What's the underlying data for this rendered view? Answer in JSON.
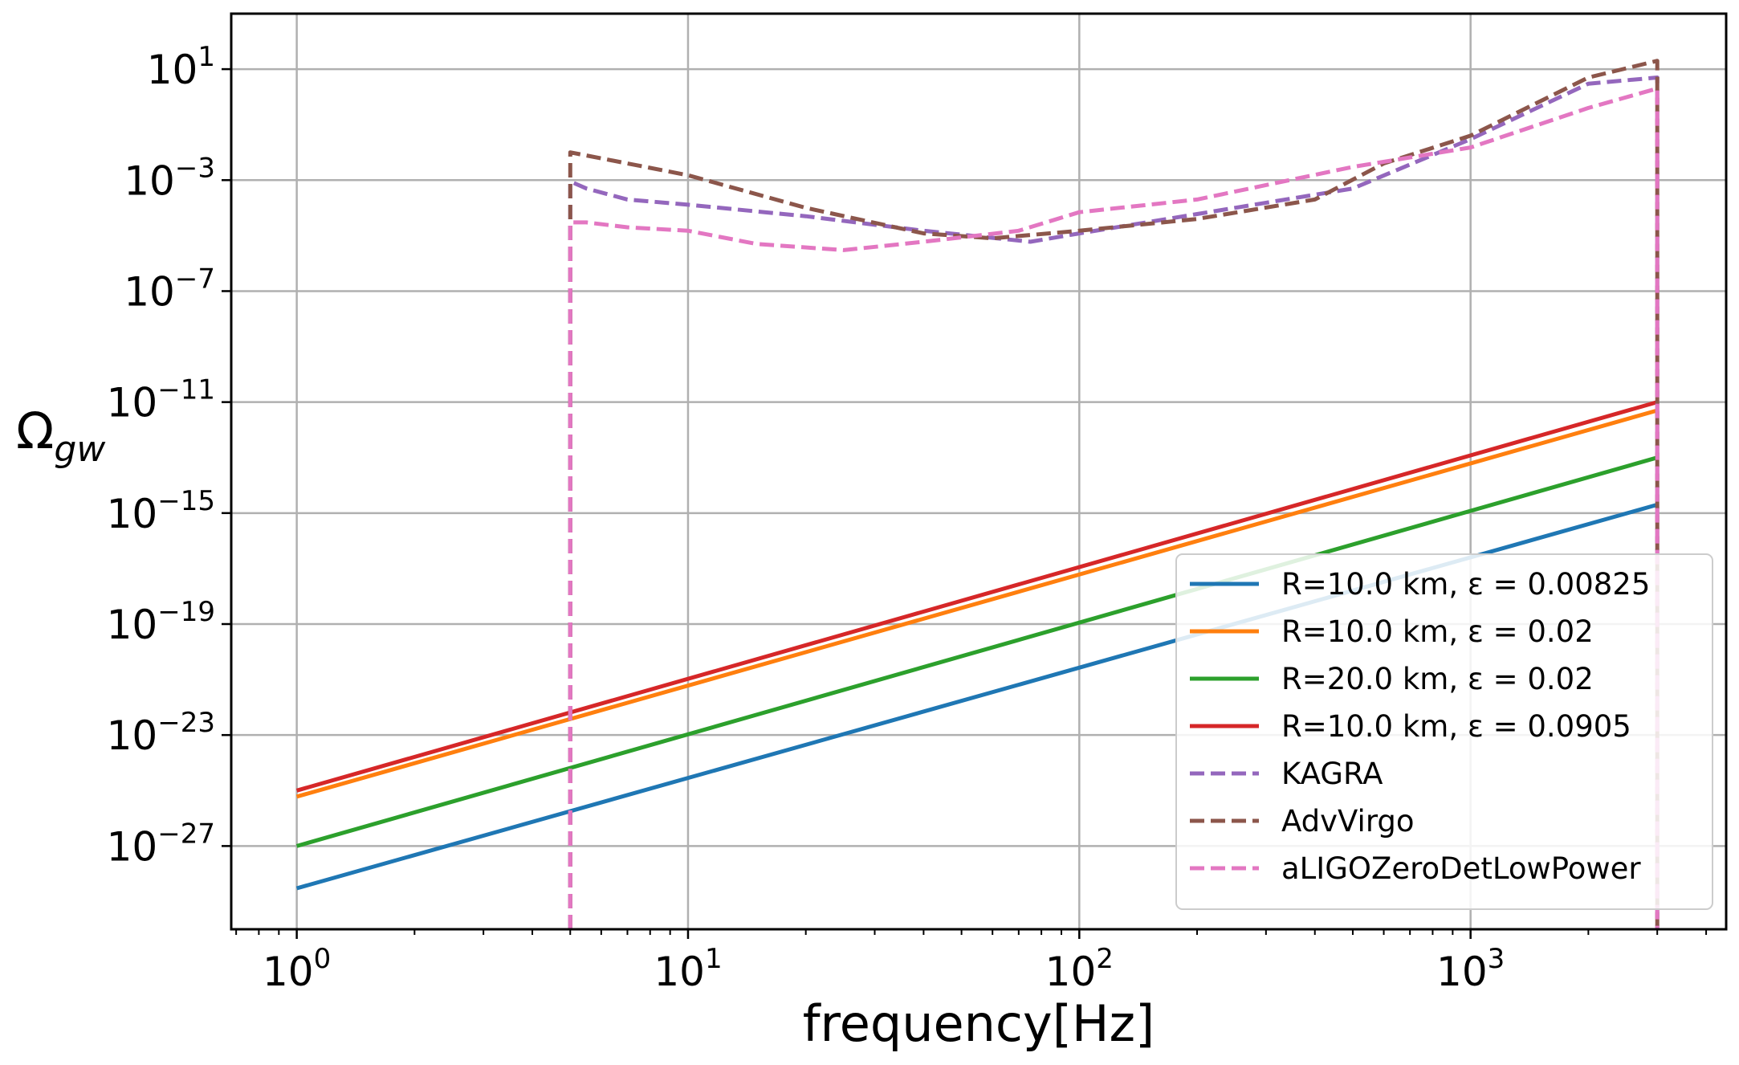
{
  "chart_data": {
    "type": "line",
    "title": "",
    "xlabel": "frequency[Hz]",
    "ylabel_base": "Ω",
    "ylabel_sub": "gw",
    "xscale": "log",
    "yscale": "log",
    "xlim": [
      0.68,
      4500
    ],
    "ylim": [
      1e-30,
      1000.0
    ],
    "grid": true,
    "legend_position": "lower-right",
    "x_ticks": [
      {
        "value": 1,
        "base": "10",
        "exp": "0"
      },
      {
        "value": 10,
        "base": "10",
        "exp": "1"
      },
      {
        "value": 100,
        "base": "10",
        "exp": "2"
      },
      {
        "value": 1000,
        "base": "10",
        "exp": "3"
      }
    ],
    "y_ticks": [
      {
        "value": 10.0,
        "base": "10",
        "exp": "1"
      },
      {
        "value": 0.001,
        "base": "10",
        "exp": "−3"
      },
      {
        "value": 1e-07,
        "base": "10",
        "exp": "−7"
      },
      {
        "value": 1e-11,
        "base": "10",
        "exp": "−11"
      },
      {
        "value": 1e-15,
        "base": "10",
        "exp": "−15"
      },
      {
        "value": 1e-19,
        "base": "10",
        "exp": "−19"
      },
      {
        "value": 1e-23,
        "base": "10",
        "exp": "−23"
      },
      {
        "value": 1e-27,
        "base": "10",
        "exp": "−27"
      }
    ],
    "series": [
      {
        "name": "R=10.0 km, ε = 0.00825",
        "color": "#1f77b4",
        "style": "solid",
        "x": [
          1,
          3000
        ],
        "y": [
          3e-29,
          2e-15
        ]
      },
      {
        "name": "R=10.0 km, ε = 0.02",
        "color": "#ff7f0e",
        "style": "solid",
        "x": [
          1,
          3000
        ],
        "y": [
          6e-26,
          5e-12
        ]
      },
      {
        "name": "R=20.0 km, ε = 0.02",
        "color": "#2ca02c",
        "style": "solid",
        "x": [
          1,
          3000
        ],
        "y": [
          1e-27,
          1e-13
        ]
      },
      {
        "name": "R=10.0 km, ε = 0.0905",
        "color": "#d62728",
        "style": "solid",
        "x": [
          1,
          3000
        ],
        "y": [
          1e-25,
          1e-11
        ]
      },
      {
        "name": "KAGRA",
        "color": "#9467bd",
        "style": "dashed",
        "x": [
          5,
          5,
          5.5,
          7,
          10,
          20,
          40,
          75,
          100,
          200,
          500,
          1000,
          2000,
          3000,
          3000
        ],
        "y": [
          1e-30,
          0.0009,
          0.0005,
          0.0002,
          0.00013,
          5e-05,
          1.5e-05,
          6e-06,
          1.2e-05,
          6e-05,
          0.0005,
          0.03,
          3,
          5,
          1e-30
        ]
      },
      {
        "name": "AdvVirgo",
        "color": "#8c564b",
        "style": "dashed",
        "x": [
          5,
          5,
          7,
          10,
          20,
          40,
          60,
          100,
          200,
          400,
          600,
          1000,
          2000,
          3000,
          3000
        ],
        "y": [
          1e-30,
          0.01,
          0.004,
          0.0015,
          0.0001,
          1.2e-05,
          8e-06,
          1.5e-05,
          4e-05,
          0.0002,
          0.004,
          0.04,
          5,
          20,
          1e-30
        ]
      },
      {
        "name": "aLIGOZeroDetLowPower",
        "color": "#e377c2",
        "style": "dashed",
        "x": [
          5,
          5,
          5.5,
          7,
          10,
          15,
          25,
          40,
          70,
          100,
          200,
          500,
          1000,
          2000,
          3000,
          3000
        ],
        "y": [
          1e-30,
          3e-05,
          3e-05,
          2e-05,
          1.5e-05,
          5e-06,
          3e-06,
          6e-06,
          1.5e-05,
          7e-05,
          0.0002,
          0.003,
          0.015,
          0.4,
          2,
          1e-30
        ]
      }
    ]
  }
}
